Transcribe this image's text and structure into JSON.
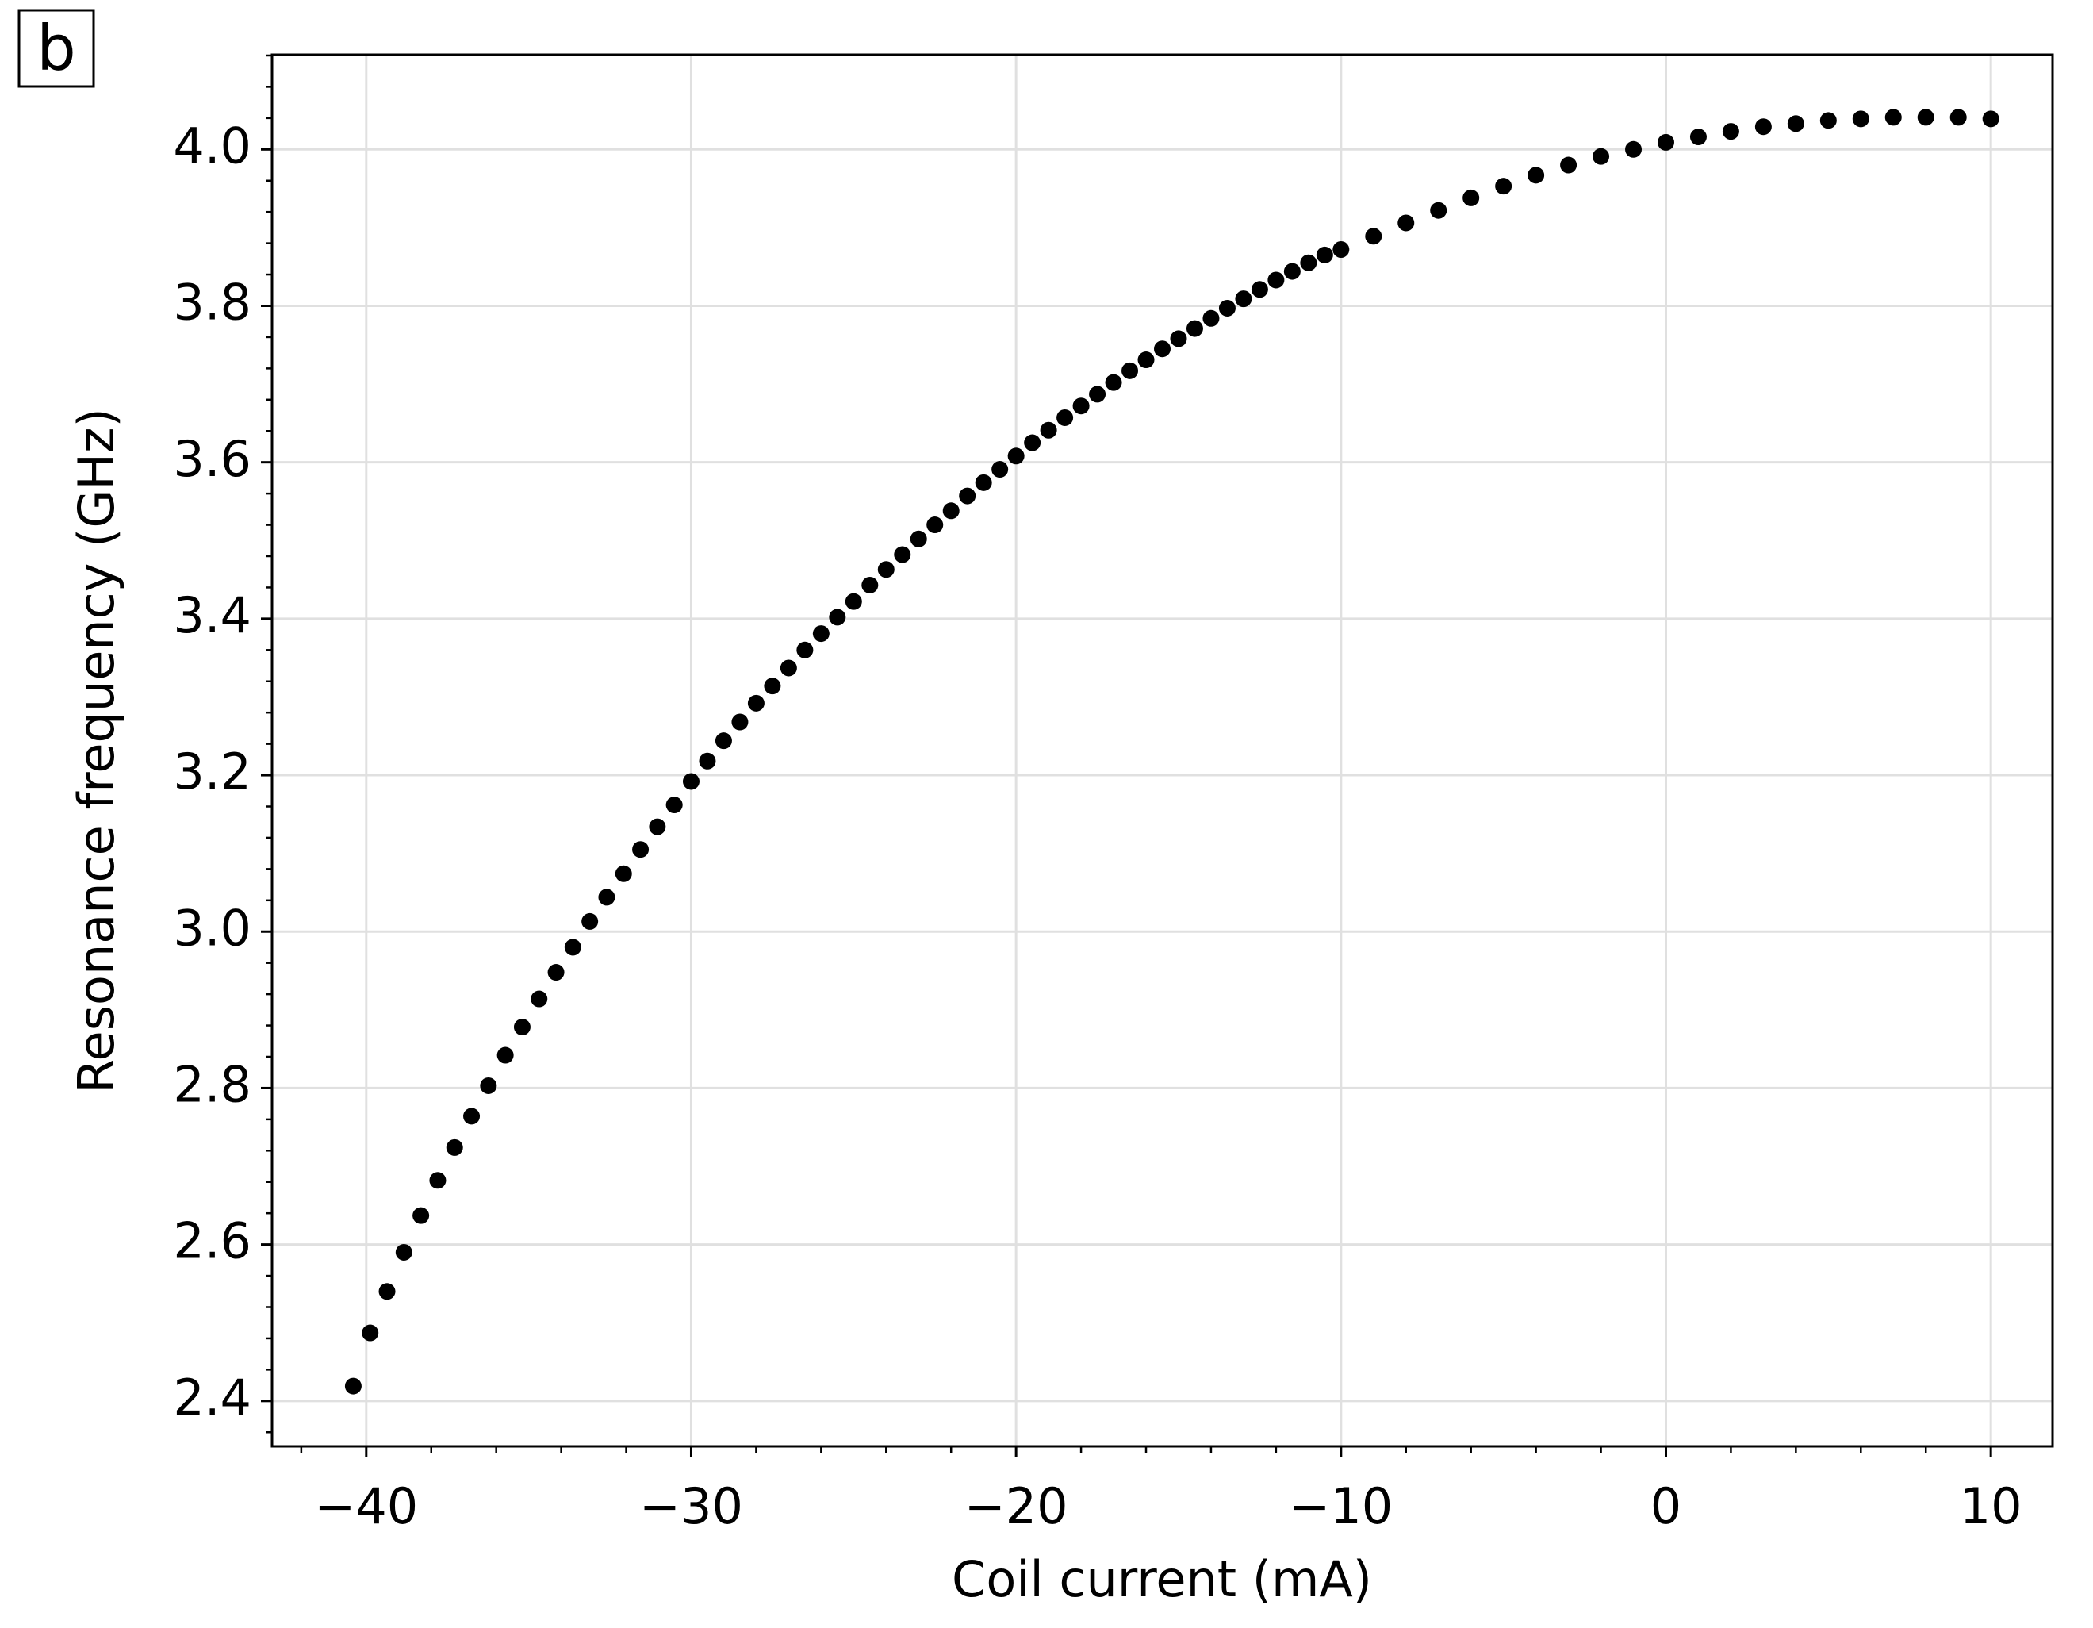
{
  "chart_data": {
    "type": "scatter",
    "panel_label": "b",
    "x_label": "Coil current (mA)",
    "y_label": "Resonance frequency (GHz)",
    "color": "#000000",
    "grid": true,
    "xlim": [
      -42.9,
      11.9
    ],
    "ylim": [
      2.342,
      4.121
    ],
    "xticks": [
      {
        "value": -40,
        "label": "−40"
      },
      {
        "value": -30,
        "label": "−30"
      },
      {
        "value": -20,
        "label": "−20"
      },
      {
        "value": -10,
        "label": "−10"
      },
      0,
      10
    ],
    "yticks": [
      2.4,
      2.6,
      2.8,
      {
        "value": 3,
        "label": "3.0"
      },
      3.2,
      3.4,
      3.6,
      3.8,
      {
        "value": 4,
        "label": "4.0"
      }
    ],
    "xminorticks": [
      -42,
      -38,
      -36,
      -34,
      -32,
      -28,
      -26,
      -24,
      -22,
      -18,
      -16,
      -14,
      -12,
      -8,
      -6,
      -4,
      -2,
      2,
      4,
      6,
      8
    ],
    "yminorticks": [
      2.36,
      2.44,
      2.48,
      2.52,
      2.56,
      2.64,
      2.68,
      2.72,
      2.76,
      2.84,
      2.88,
      2.92,
      2.96,
      3.04,
      3.08,
      3.12,
      3.16,
      3.24,
      3.28,
      3.32,
      3.36,
      3.44,
      3.48,
      3.52,
      3.56,
      3.64,
      3.68,
      3.72,
      3.76,
      3.84,
      3.88,
      3.92,
      3.96,
      4.04,
      4.08,
      4.12
    ],
    "x": [
      -40.4,
      -39.88,
      -39.36,
      -38.84,
      -38.32,
      -37.8,
      -37.28,
      -36.76,
      -36.24,
      -35.72,
      -35.2,
      -34.68,
      -34.16,
      -33.64,
      -33.12,
      -32.6,
      -32.08,
      -31.56,
      -31.04,
      -30.52,
      -30.0,
      -29.5,
      -29,
      -28.5,
      -28,
      -27.5,
      -27,
      -26.5,
      -26,
      -25.5,
      -25,
      -24.5,
      -24,
      -23.5,
      -23,
      -22.5,
      -22,
      -21.5,
      -21,
      -20.5,
      -20,
      -19.5,
      -19,
      -18.5,
      -18,
      -17.5,
      -17,
      -16.5,
      -16,
      -15.5,
      -15,
      -14.5,
      -14,
      -13.5,
      -13,
      -12.5,
      -12,
      -11.5,
      -11,
      -10.5,
      -10,
      -9,
      -8,
      -7,
      -6,
      -5,
      -4,
      -3,
      -2,
      -1,
      0,
      1,
      2,
      3,
      4,
      5,
      6,
      7,
      8,
      9,
      10
    ],
    "values": [
      2.419,
      2.487,
      2.54,
      2.59,
      2.637,
      2.682,
      2.724,
      2.764,
      2.803,
      2.842,
      2.878,
      2.914,
      2.948,
      2.98,
      3.013,
      3.044,
      3.074,
      3.105,
      3.134,
      3.162,
      3.192,
      3.218,
      3.244,
      3.268,
      3.292,
      3.314,
      3.337,
      3.36,
      3.381,
      3.402,
      3.422,
      3.443,
      3.463,
      3.482,
      3.502,
      3.52,
      3.538,
      3.557,
      3.574,
      3.591,
      3.608,
      3.625,
      3.641,
      3.657,
      3.672,
      3.687,
      3.702,
      3.717,
      3.731,
      3.745,
      3.758,
      3.771,
      3.784,
      3.797,
      3.809,
      3.821,
      3.833,
      3.844,
      3.855,
      3.865,
      3.872,
      3.889,
      3.906,
      3.922,
      3.938,
      3.953,
      3.967,
      3.98,
      3.991,
      4.0,
      4.009,
      4.016,
      4.023,
      4.029,
      4.033,
      4.037,
      4.039,
      4.041,
      4.041,
      4.041,
      4.039
    ]
  }
}
